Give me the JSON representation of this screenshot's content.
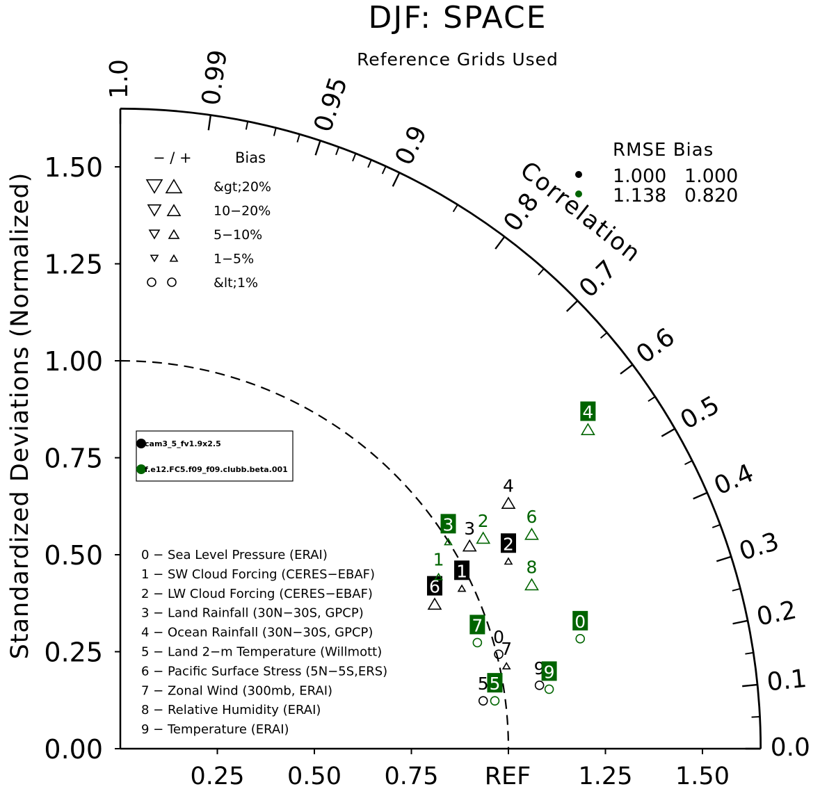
{
  "chart_data": {
    "type": "taylor",
    "title": "DJF: SPACE",
    "subtitle": "Reference Grids Used",
    "ylabel": "Standardized Deviations (Normalized)",
    "arc_label": "Correlation",
    "ref_label": "REF",
    "std_ticks": [
      "0.00",
      "0.25",
      "0.50",
      "0.75",
      "1.00",
      "1.25",
      "1.50"
    ],
    "x_tick_labels": [
      "0.25",
      "0.50",
      "0.75",
      "1.25",
      "1.50"
    ],
    "std_max": 1.65,
    "corr_labels": [
      "0.0",
      "0.1",
      "0.2",
      "0.3",
      "0.4",
      "0.5",
      "0.6",
      "0.7",
      "0.8",
      "0.9",
      "0.95",
      "0.99",
      "1.0"
    ],
    "bias_legend": {
      "header_signs": "−  /  +",
      "header_bias": "Bias",
      "rows": [
        "&gt;20%",
        "10−20%",
        "5−10%",
        "1−5%",
        "&lt;1%"
      ]
    },
    "rmse_legend": {
      "header": "RMSE  Bias",
      "rows": [
        {
          "rmse": "1.000",
          "bias": "1.000",
          "color": "#000000"
        },
        {
          "rmse": "1.138",
          "bias": "0.820",
          "color": "#006400"
        }
      ]
    },
    "cases": [
      {
        "name": "cam3_5_fv1.9x2.5",
        "color": "#000000"
      },
      {
        "name": "f.e12.FC5.f09_f09.clubb.beta.001",
        "color": "#006400"
      }
    ],
    "variables": [
      "0 − Sea Level Pressure (ERAI)",
      "1 − SW Cloud Forcing (CERES−EBAF)",
      "2 − LW Cloud Forcing (CERES−EBAF)",
      "3 − Land Rainfall (30N−30S, GPCP)",
      "4 − Ocean Rainfall (30N−30S, GPCP)",
      "5 − Land 2−m Temperature (Willmott)",
      "6 − Pacific Surface Stress (5N−5S,ERS)",
      "7 − Zonal Wind (300mb, ERAI)",
      "8 − Relative Humidity (ERAI)",
      "9 − Temperature (ERAI)"
    ],
    "series": [
      {
        "name": "cam3_5_fv1.9x2.5",
        "color": "#000000",
        "points": [
          {
            "id": "0",
            "x": 0.975,
            "y": 0.29,
            "boxed": false,
            "marker": "circle-small"
          },
          {
            "id": "1",
            "x": 0.88,
            "y": 0.46,
            "boxed": true,
            "marker": "tri-up-small"
          },
          {
            "id": "2",
            "x": 1.0,
            "y": 0.53,
            "boxed": true,
            "marker": "tri-up-small"
          },
          {
            "id": "3",
            "x": 0.9,
            "y": 0.57,
            "boxed": false,
            "marker": "tri-up-large"
          },
          {
            "id": "4",
            "x": 1.0,
            "y": 0.68,
            "boxed": false,
            "marker": "tri-up-large"
          },
          {
            "id": "5",
            "x": 0.935,
            "y": 0.17,
            "boxed": false,
            "marker": "circle-small"
          },
          {
            "id": "6",
            "x": 0.81,
            "y": 0.42,
            "boxed": true,
            "marker": "tri-up-large"
          },
          {
            "id": "7",
            "x": 0.995,
            "y": 0.26,
            "boxed": false,
            "marker": "tri-up-small"
          },
          {
            "id": "9",
            "x": 1.08,
            "y": 0.21,
            "boxed": false,
            "marker": "circle-small"
          }
        ]
      },
      {
        "name": "f.e12.FC5.f09_f09.clubb.beta.001",
        "color": "#006400",
        "points": [
          {
            "id": "0",
            "x": 1.185,
            "y": 0.33,
            "boxed": true,
            "marker": "circle-small"
          },
          {
            "id": "1",
            "x": 0.82,
            "y": 0.49,
            "boxed": false,
            "marker": "tri-up-small"
          },
          {
            "id": "2",
            "x": 0.935,
            "y": 0.59,
            "boxed": false,
            "marker": "tri-up-large"
          },
          {
            "id": "3",
            "x": 0.845,
            "y": 0.58,
            "boxed": true,
            "marker": "tri-up-small"
          },
          {
            "id": "4",
            "x": 1.205,
            "y": 0.87,
            "boxed": true,
            "marker": "tri-up-large"
          },
          {
            "id": "5",
            "x": 0.965,
            "y": 0.17,
            "boxed": true,
            "marker": "circle-small"
          },
          {
            "id": "6",
            "x": 1.06,
            "y": 0.6,
            "boxed": false,
            "marker": "tri-up-large"
          },
          {
            "id": "7",
            "x": 0.92,
            "y": 0.32,
            "boxed": true,
            "marker": "circle-small"
          },
          {
            "id": "8",
            "x": 1.06,
            "y": 0.47,
            "boxed": false,
            "marker": "tri-up-large"
          },
          {
            "id": "9",
            "x": 1.105,
            "y": 0.2,
            "boxed": true,
            "marker": "circle-small"
          }
        ]
      }
    ]
  }
}
